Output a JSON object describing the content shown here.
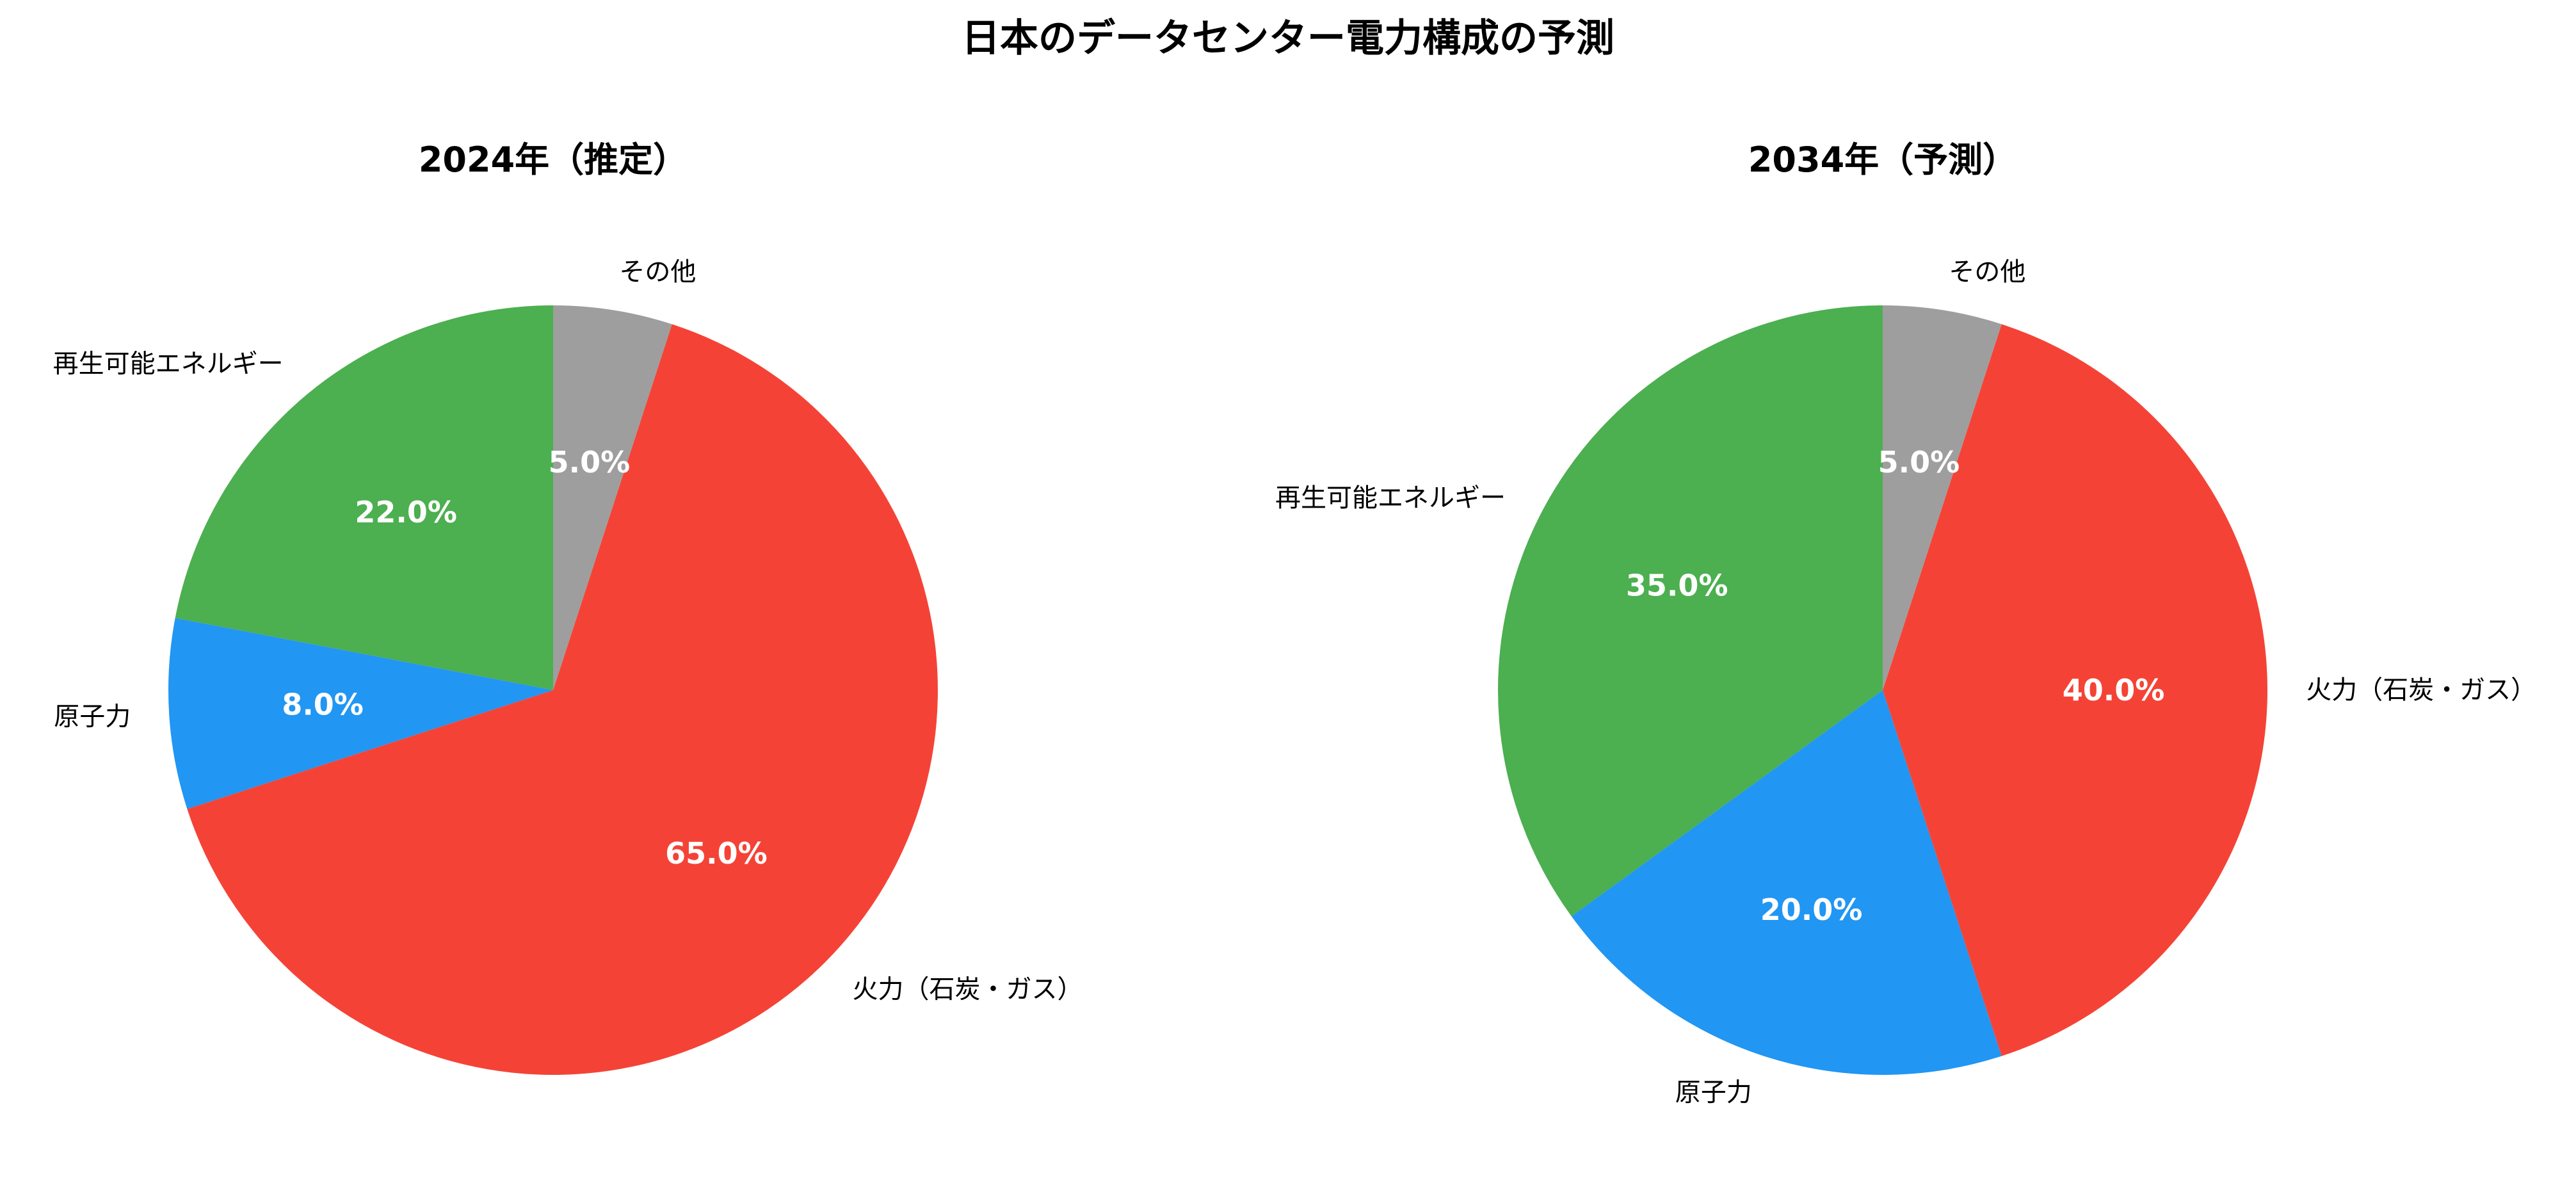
{
  "chart_data": [
    {
      "type": "pie",
      "suptitle": "日本のデータセンター電力構成の予測",
      "title": "2024年（推定）",
      "start_angle_deg": 90,
      "direction": "counterclockwise",
      "slices": [
        {
          "label": "再生可能エネルギー",
          "value": 22.0,
          "display": "22.0%",
          "color": "#4CAF50"
        },
        {
          "label": "原子力",
          "value": 8.0,
          "display": "8.0%",
          "color": "#2196F3"
        },
        {
          "label": "火力（石炭・ガス）",
          "value": 65.0,
          "display": "65.0%",
          "color": "#F44336"
        },
        {
          "label": "その他",
          "value": 5.0,
          "display": "5.0%",
          "color": "#9E9E9E"
        }
      ]
    },
    {
      "type": "pie",
      "title": "2034年（予測）",
      "start_angle_deg": 90,
      "direction": "counterclockwise",
      "slices": [
        {
          "label": "再生可能エネルギー",
          "value": 35.0,
          "display": "35.0%",
          "color": "#4CAF50"
        },
        {
          "label": "原子力",
          "value": 20.0,
          "display": "20.0%",
          "color": "#2196F3"
        },
        {
          "label": "火力（石炭・ガス）",
          "value": 40.0,
          "display": "40.0%",
          "color": "#F44336"
        },
        {
          "label": "その他",
          "value": 5.0,
          "display": "5.0%",
          "color": "#9E9E9E"
        }
      ]
    }
  ]
}
